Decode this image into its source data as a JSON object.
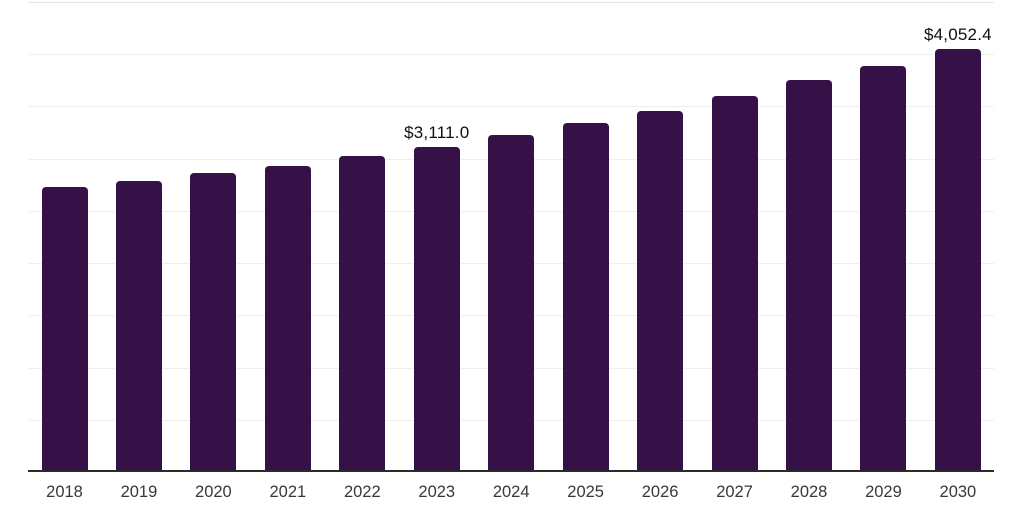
{
  "chart_data": {
    "type": "bar",
    "title": "",
    "xlabel": "",
    "ylabel": "",
    "categories": [
      "2018",
      "2019",
      "2020",
      "2021",
      "2022",
      "2023",
      "2024",
      "2025",
      "2026",
      "2027",
      "2028",
      "2029",
      "2030"
    ],
    "values": [
      2730,
      2790,
      2865,
      2930,
      3030,
      3111.0,
      3230,
      3340,
      3460,
      3600,
      3750,
      3890,
      4052.4
    ],
    "value_labels": [
      "",
      "",
      "",
      "",
      "",
      "$3,111.0",
      "",
      "",
      "",
      "",
      "",
      "",
      "$4,052.4"
    ],
    "ylim": [
      0,
      4500
    ],
    "gridline_step": 500,
    "grid": true,
    "y_tick_labels_shown": false,
    "legend_position": "none",
    "colors": {
      "bar": "#351148",
      "axis_line": "#2b2b2b",
      "gridline": "#efefef",
      "top_gridline": "#e4e4e4",
      "x_tick_label": "#383838",
      "value_label": "#0f0f0f",
      "background": "#ffffff"
    }
  }
}
